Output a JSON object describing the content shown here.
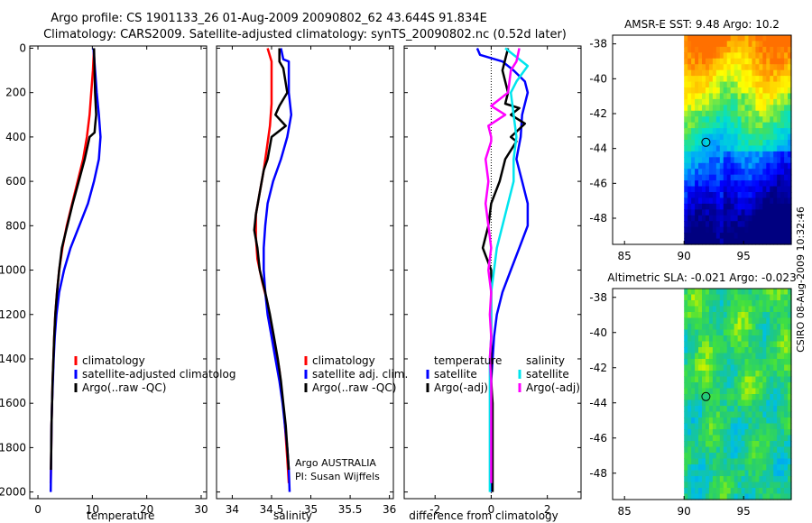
{
  "header": {
    "title_line1": "Argo profile: CS 1901133_26 01-Aug-2009 20090802_62 43.644S 91.834E",
    "title_line2": "Climatology: CARS2009. Satellite-adjusted climatology: synTS_20090802.nc (0.52d later)"
  },
  "side_stamp": "CSIRO 08-Aug-2009 10:32:46",
  "colors": {
    "red": "#ff0000",
    "blue": "#0000ff",
    "black": "#000000",
    "cyan": "#00e5ee",
    "magenta": "#ff00ff"
  },
  "chart_data": [
    {
      "type": "line",
      "name": "temperature",
      "xlabel": "temperature",
      "xlim": [
        -1.5,
        31
      ],
      "xticks": [
        0,
        10,
        20,
        30
      ],
      "ylim": [
        2030,
        -10
      ],
      "yticks": [
        0,
        200,
        400,
        600,
        800,
        1000,
        1200,
        1400,
        1600,
        1800,
        2000
      ],
      "series": [
        {
          "name": "climatology",
          "color": "red",
          "width": 2.5,
          "points": [
            [
              10.3,
              0
            ],
            [
              10.1,
              100
            ],
            [
              9.8,
              200
            ],
            [
              9.5,
              300
            ],
            [
              9,
              400
            ],
            [
              8.3,
              500
            ],
            [
              7.3,
              600
            ],
            [
              6.3,
              700
            ],
            [
              5.3,
              800
            ],
            [
              4.5,
              900
            ],
            [
              3.9,
              1000
            ],
            [
              3.5,
              1100
            ],
            [
              3.2,
              1200
            ],
            [
              3,
              1300
            ],
            [
              2.85,
              1400
            ],
            [
              2.7,
              1500
            ],
            [
              2.6,
              1600
            ],
            [
              2.5,
              1700
            ],
            [
              2.45,
              1800
            ],
            [
              2.4,
              1900
            ],
            [
              2.35,
              1960
            ]
          ]
        },
        {
          "name": "satellite-adjusted climatology",
          "color": "blue",
          "width": 2.5,
          "points": [
            [
              10.2,
              0
            ],
            [
              10.5,
              100
            ],
            [
              10.8,
              200
            ],
            [
              11.2,
              300
            ],
            [
              11.5,
              400
            ],
            [
              11.2,
              500
            ],
            [
              10.3,
              600
            ],
            [
              9.2,
              700
            ],
            [
              7.6,
              800
            ],
            [
              6,
              900
            ],
            [
              4.8,
              1000
            ],
            [
              3.9,
              1100
            ],
            [
              3.4,
              1200
            ],
            [
              3.1,
              1300
            ],
            [
              2.9,
              1400
            ],
            [
              2.75,
              1500
            ],
            [
              2.6,
              1600
            ],
            [
              2.5,
              1700
            ],
            [
              2.45,
              1800
            ],
            [
              2.4,
              1900
            ],
            [
              2.35,
              2000
            ]
          ]
        },
        {
          "name": "Argo(..raw -QC)",
          "color": "black",
          "width": 2.5,
          "points": [
            [
              10.3,
              0
            ],
            [
              10.4,
              100
            ],
            [
              10.5,
              200
            ],
            [
              10.7,
              300
            ],
            [
              10.5,
              350
            ],
            [
              10.4,
              380
            ],
            [
              9.5,
              400
            ],
            [
              8.6,
              500
            ],
            [
              7.5,
              600
            ],
            [
              6.4,
              700
            ],
            [
              5.4,
              800
            ],
            [
              4.4,
              900
            ],
            [
              3.9,
              1000
            ],
            [
              3.5,
              1100
            ],
            [
              3.2,
              1200
            ],
            [
              3,
              1300
            ],
            [
              2.85,
              1400
            ],
            [
              2.7,
              1500
            ],
            [
              2.6,
              1600
            ],
            [
              2.5,
              1700
            ],
            [
              2.45,
              1800
            ],
            [
              2.4,
              1900
            ]
          ]
        }
      ],
      "legend": {
        "placement": "lower-middle",
        "entries": [
          "climatology",
          "satellite-adjusted climatolog",
          "Argo(..raw -QC)"
        ]
      }
    },
    {
      "type": "line",
      "name": "salinity",
      "xlabel": "salinity",
      "xlim": [
        33.8,
        36.05
      ],
      "xticks": [
        34,
        34.5,
        35,
        35.5,
        36
      ],
      "ylim": [
        2030,
        -10
      ],
      "series": [
        {
          "name": "climatology",
          "color": "red",
          "width": 2.5,
          "points": [
            [
              34.45,
              0
            ],
            [
              34.5,
              60
            ],
            [
              34.5,
              150
            ],
            [
              34.5,
              250
            ],
            [
              34.48,
              350
            ],
            [
              34.44,
              450
            ],
            [
              34.4,
              550
            ],
            [
              34.35,
              650
            ],
            [
              34.3,
              750
            ],
            [
              34.3,
              850
            ],
            [
              34.32,
              950
            ],
            [
              34.38,
              1050
            ],
            [
              34.45,
              1150
            ],
            [
              34.5,
              1250
            ],
            [
              34.55,
              1350
            ],
            [
              34.6,
              1450
            ],
            [
              34.63,
              1550
            ],
            [
              34.66,
              1650
            ],
            [
              34.68,
              1750
            ],
            [
              34.7,
              1850
            ],
            [
              34.72,
              1960
            ]
          ]
        },
        {
          "name": "satellite adj. clim.",
          "color": "blue",
          "width": 2.5,
          "points": [
            [
              34.62,
              0
            ],
            [
              34.65,
              50
            ],
            [
              34.72,
              60
            ],
            [
              34.72,
              200
            ],
            [
              34.75,
              300
            ],
            [
              34.7,
              400
            ],
            [
              34.62,
              500
            ],
            [
              34.52,
              600
            ],
            [
              34.45,
              700
            ],
            [
              34.42,
              800
            ],
            [
              34.4,
              900
            ],
            [
              34.4,
              1000
            ],
            [
              34.42,
              1100
            ],
            [
              34.45,
              1200
            ],
            [
              34.5,
              1300
            ],
            [
              34.55,
              1400
            ],
            [
              34.6,
              1500
            ],
            [
              34.64,
              1600
            ],
            [
              34.67,
              1700
            ],
            [
              34.7,
              1800
            ],
            [
              34.72,
              1900
            ],
            [
              34.73,
              2000
            ]
          ]
        },
        {
          "name": "Argo(..raw -QC)",
          "color": "black",
          "width": 2.5,
          "points": [
            [
              34.6,
              0
            ],
            [
              34.6,
              60
            ],
            [
              34.65,
              90
            ],
            [
              34.7,
              200
            ],
            [
              34.6,
              260
            ],
            [
              34.55,
              300
            ],
            [
              34.68,
              350
            ],
            [
              34.5,
              400
            ],
            [
              34.45,
              500
            ],
            [
              34.4,
              550
            ],
            [
              34.35,
              650
            ],
            [
              34.3,
              750
            ],
            [
              34.28,
              820
            ],
            [
              34.32,
              900
            ],
            [
              34.35,
              1000
            ],
            [
              34.42,
              1100
            ],
            [
              34.48,
              1200
            ],
            [
              34.53,
              1300
            ],
            [
              34.58,
              1400
            ],
            [
              34.62,
              1500
            ],
            [
              34.65,
              1600
            ],
            [
              34.68,
              1700
            ],
            [
              34.7,
              1800
            ],
            [
              34.72,
              1900
            ]
          ]
        }
      ],
      "legend": {
        "placement": "lower-right",
        "entries": [
          "climatology",
          "satellite adj. clim.",
          "Argo(..raw -QC)"
        ]
      },
      "annotation": {
        "line1": "Argo AUSTRALIA",
        "line2": "PI: Susan Wijffels"
      }
    },
    {
      "type": "line",
      "name": "difference from climatology",
      "xlabel": "difference from climatology",
      "xlim": [
        -3.1,
        3.2
      ],
      "xticks": [
        -2,
        0,
        2
      ],
      "ylim": [
        2030,
        -10
      ],
      "zero_line": "dotted",
      "series": [
        {
          "name": "satellite (temperature)",
          "color": "blue",
          "width": 2.5,
          "points": [
            [
              -0.5,
              0
            ],
            [
              -0.4,
              30
            ],
            [
              0.4,
              60
            ],
            [
              0.8,
              100
            ],
            [
              1.2,
              150
            ],
            [
              1.3,
              200
            ],
            [
              1.1,
              300
            ],
            [
              1.05,
              400
            ],
            [
              0.9,
              500
            ],
            [
              1.1,
              600
            ],
            [
              1.3,
              700
            ],
            [
              1.3,
              800
            ],
            [
              1,
              900
            ],
            [
              0.7,
              1000
            ],
            [
              0.4,
              1100
            ],
            [
              0.2,
              1200
            ],
            [
              0.1,
              1300
            ],
            [
              0.05,
              1400
            ],
            [
              0,
              1500
            ],
            [
              0,
              1600
            ],
            [
              0,
              1700
            ],
            [
              0,
              1800
            ],
            [
              0,
              1900
            ],
            [
              0,
              2000
            ]
          ]
        },
        {
          "name": "Argo(-adj) (temperature)",
          "color": "black",
          "width": 2.5,
          "points": [
            [
              0.6,
              0
            ],
            [
              0.5,
              50
            ],
            [
              0.4,
              100
            ],
            [
              0.5,
              150
            ],
            [
              0.6,
              200
            ],
            [
              0.5,
              250
            ],
            [
              1,
              270
            ],
            [
              0.7,
              300
            ],
            [
              1.2,
              340
            ],
            [
              0.7,
              400
            ],
            [
              0.9,
              420
            ],
            [
              0.5,
              500
            ],
            [
              0.3,
              600
            ],
            [
              0,
              700
            ],
            [
              -0.1,
              800
            ],
            [
              -0.3,
              900
            ],
            [
              0,
              1000
            ],
            [
              0,
              1100
            ],
            [
              0,
              1200
            ],
            [
              0,
              1300
            ],
            [
              0,
              1400
            ],
            [
              0,
              1500
            ],
            [
              0.05,
              1600
            ],
            [
              0.05,
              1800
            ],
            [
              0.05,
              2000
            ]
          ]
        },
        {
          "name": "satellite (salinity)",
          "color": "cyan",
          "width": 2.5,
          "points": [
            [
              0.5,
              0
            ],
            [
              1.3,
              80
            ],
            [
              0.9,
              150
            ],
            [
              0.7,
              200
            ],
            [
              0.8,
              300
            ],
            [
              0.9,
              400
            ],
            [
              0.8,
              500
            ],
            [
              0.8,
              600
            ],
            [
              0.6,
              700
            ],
            [
              0.4,
              800
            ],
            [
              0.2,
              900
            ],
            [
              0.1,
              1000
            ],
            [
              0,
              1100
            ],
            [
              0,
              1300
            ],
            [
              -0.05,
              1400
            ],
            [
              -0.05,
              1500
            ],
            [
              -0.05,
              1600
            ],
            [
              -0.05,
              1800
            ],
            [
              -0.05,
              2000
            ]
          ]
        },
        {
          "name": "Argo(-adj) (salinity)",
          "color": "magenta",
          "width": 2.5,
          "points": [
            [
              1,
              0
            ],
            [
              0.9,
              60
            ],
            [
              0.7,
              100
            ],
            [
              0.6,
              200
            ],
            [
              0,
              260
            ],
            [
              0.5,
              300
            ],
            [
              -0.1,
              350
            ],
            [
              0,
              400
            ],
            [
              0,
              420
            ],
            [
              -0.2,
              500
            ],
            [
              -0.1,
              600
            ],
            [
              -0.2,
              700
            ],
            [
              -0.1,
              800
            ],
            [
              0,
              900
            ],
            [
              -0.1,
              1000
            ],
            [
              0,
              1100
            ],
            [
              -0.05,
              1200
            ],
            [
              0,
              1300
            ],
            [
              -0.05,
              1400
            ],
            [
              0,
              1500
            ],
            [
              0,
              1600
            ],
            [
              0,
              1800
            ],
            [
              0,
              1960
            ]
          ]
        }
      ],
      "legend": {
        "placement": "lower-middle",
        "groups": [
          {
            "header": "temperature",
            "entries": [
              "satellite",
              "Argo(-adj)"
            ],
            "colors": [
              "blue",
              "black"
            ]
          },
          {
            "header": "salinity",
            "entries": [
              "satellite",
              "Argo(-adj)"
            ],
            "colors": [
              "cyan",
              "magenta"
            ]
          }
        ]
      }
    },
    {
      "type": "heatmap",
      "name": "AMSR-E SST",
      "title": "AMSR-E SST: 9.48  Argo: 10.2",
      "xlim": [
        84,
        99
      ],
      "xticks": [
        85,
        90,
        95
      ],
      "ylim": [
        -49.5,
        -37.5
      ],
      "yticks": [
        -38,
        -40,
        -42,
        -44,
        -46,
        -48
      ],
      "data_extent_lon": [
        90,
        99
      ],
      "profile_marker": {
        "lon": 91.834,
        "lat": -43.644
      }
    },
    {
      "type": "heatmap",
      "name": "Altimetric SLA",
      "title": "Altimetric SLA: -0.021  Argo: -0.023",
      "xlim": [
        84,
        99
      ],
      "xticks": [
        85,
        90,
        95
      ],
      "ylim": [
        -49.5,
        -37.5
      ],
      "yticks": [
        -38,
        -40,
        -42,
        -44,
        -46,
        -48
      ],
      "data_extent_lon": [
        90,
        99
      ],
      "profile_marker": {
        "lon": 91.834,
        "lat": -43.644
      }
    }
  ]
}
